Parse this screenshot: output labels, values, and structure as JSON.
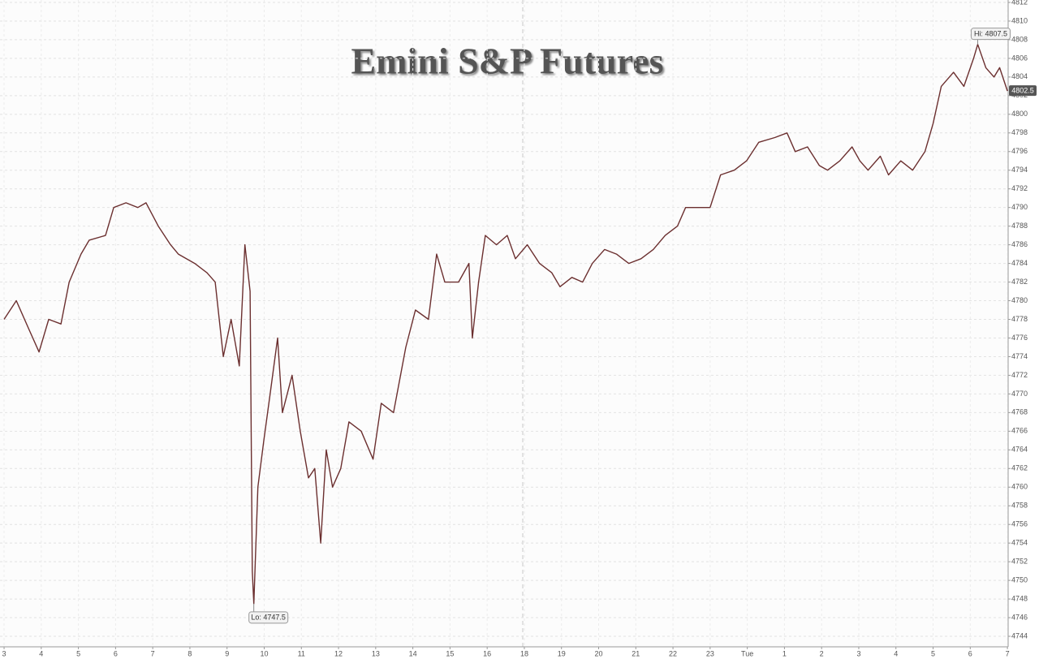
{
  "chart_data": {
    "type": "line",
    "title": "Emini S&P Futures",
    "x": [
      0,
      0.33,
      0.66,
      0.94,
      1.2,
      1.53,
      1.75,
      2.07,
      2.29,
      2.73,
      2.95,
      3.28,
      3.6,
      3.82,
      4.15,
      4.48,
      4.69,
      5.13,
      5.46,
      5.68,
      5.9,
      6.11,
      6.33,
      6.48,
      6.62,
      6.68,
      6.72,
      6.83,
      6.99,
      7.16,
      7.36,
      7.49,
      7.75,
      7.97,
      8.19,
      8.36,
      8.52,
      8.67,
      8.84,
      9.06,
      9.28,
      9.61,
      9.93,
      10.15,
      10.48,
      10.81,
      11.07,
      11.42,
      11.64,
      11.86,
      12.23,
      12.51,
      12.6,
      12.77,
      12.95,
      13.25,
      13.54,
      13.76,
      14.08,
      14.41,
      14.74,
      14.96,
      15.28,
      15.57,
      15.83,
      16.16,
      16.48,
      16.81,
      17.14,
      17.47,
      17.79,
      18.12,
      18.34,
      18.67,
      19,
      19.28,
      19.65,
      19.98,
      20.31,
      20.74,
      21.07,
      21.29,
      21.62,
      21.94,
      22.16,
      22.49,
      22.82,
      23.03,
      23.25,
      23.58,
      23.8,
      24.13,
      24.45,
      24.78,
      25,
      25.22,
      25.55,
      25.83,
      26.09,
      26.2,
      26.42,
      26.64,
      26.79,
      27
    ],
    "series": [
      {
        "color": "#6b2f2f",
        "values": [
          4778,
          4780,
          4777,
          4774.5,
          4778,
          4777.5,
          4782,
          4785,
          4786.5,
          4787,
          4790,
          4790.5,
          4790,
          4790.5,
          4788,
          4786,
          4785,
          4784,
          4783,
          4782,
          4774,
          4778,
          4773,
          4786,
          4781,
          4751,
          4747.5,
          4760,
          4765,
          4770,
          4776,
          4768,
          4772,
          4766,
          4761,
          4762,
          4754,
          4764,
          4760,
          4762,
          4767,
          4766,
          4763,
          4769,
          4768,
          4775,
          4779,
          4778,
          4785,
          4782,
          4782,
          4784,
          4776,
          4782,
          4787,
          4786,
          4787,
          4784.5,
          4786,
          4784,
          4783,
          4781.5,
          4782.5,
          4782,
          4784,
          4785.5,
          4785,
          4784,
          4784.5,
          4785.5,
          4787,
          4788,
          4790,
          4790,
          4790,
          4793.5,
          4794,
          4795,
          4797,
          4797.5,
          4798,
          4796,
          4796.5,
          4794.5,
          4794,
          4795,
          4796.5,
          4795,
          4794,
          4795.5,
          4793.5,
          4795,
          4794,
          4796,
          4799,
          4803,
          4804.5,
          4803,
          4806,
          4807.5,
          4805,
          4804,
          4805,
          4802.5
        ]
      }
    ],
    "xlim": [
      -0.11,
      27.02
    ],
    "xticks": [
      {
        "value": 0,
        "label": "3"
      },
      {
        "value": 1,
        "label": "4"
      },
      {
        "value": 2,
        "label": "5"
      },
      {
        "value": 3,
        "label": "6"
      },
      {
        "value": 4,
        "label": "7"
      },
      {
        "value": 5,
        "label": "8"
      },
      {
        "value": 6,
        "label": "9"
      },
      {
        "value": 7,
        "label": "10"
      },
      {
        "value": 8,
        "label": "11"
      },
      {
        "value": 9,
        "label": "12"
      },
      {
        "value": 10,
        "label": "13"
      },
      {
        "value": 11,
        "label": "14"
      },
      {
        "value": 12,
        "label": "15"
      },
      {
        "value": 13,
        "label": "16"
      },
      {
        "value": 14,
        "label": "18"
      },
      {
        "value": 15,
        "label": "19"
      },
      {
        "value": 16,
        "label": "20"
      },
      {
        "value": 17,
        "label": "21"
      },
      {
        "value": 18,
        "label": "22"
      },
      {
        "value": 19,
        "label": "23"
      },
      {
        "value": 20,
        "label": "Tue"
      },
      {
        "value": 21,
        "label": "1"
      },
      {
        "value": 22,
        "label": "2"
      },
      {
        "value": 23,
        "label": "3"
      },
      {
        "value": 24,
        "label": "4"
      },
      {
        "value": 25,
        "label": "5"
      },
      {
        "value": 26,
        "label": "6"
      },
      {
        "value": 27,
        "label": "7"
      }
    ],
    "ylim": [
      4742.87,
      4812.26
    ],
    "yticks": [
      4744,
      4746,
      4748,
      4750,
      4752,
      4754,
      4756,
      4758,
      4760,
      4762,
      4764,
      4766,
      4768,
      4770,
      4772,
      4774,
      4776,
      4778,
      4780,
      4782,
      4784,
      4786,
      4788,
      4790,
      4792,
      4794,
      4796,
      4798,
      4800,
      4802,
      4804,
      4806,
      4808,
      4810,
      4812
    ],
    "grid": true,
    "annotations": [
      {
        "text": "Hi: 4807.5",
        "x": 26.2,
        "y": 4807.5
      },
      {
        "text": "Lo: 4747.5",
        "x": 6.72,
        "y": 4747.5
      }
    ],
    "last_price": {
      "text": "4802.5",
      "y": 4802.5
    }
  }
}
